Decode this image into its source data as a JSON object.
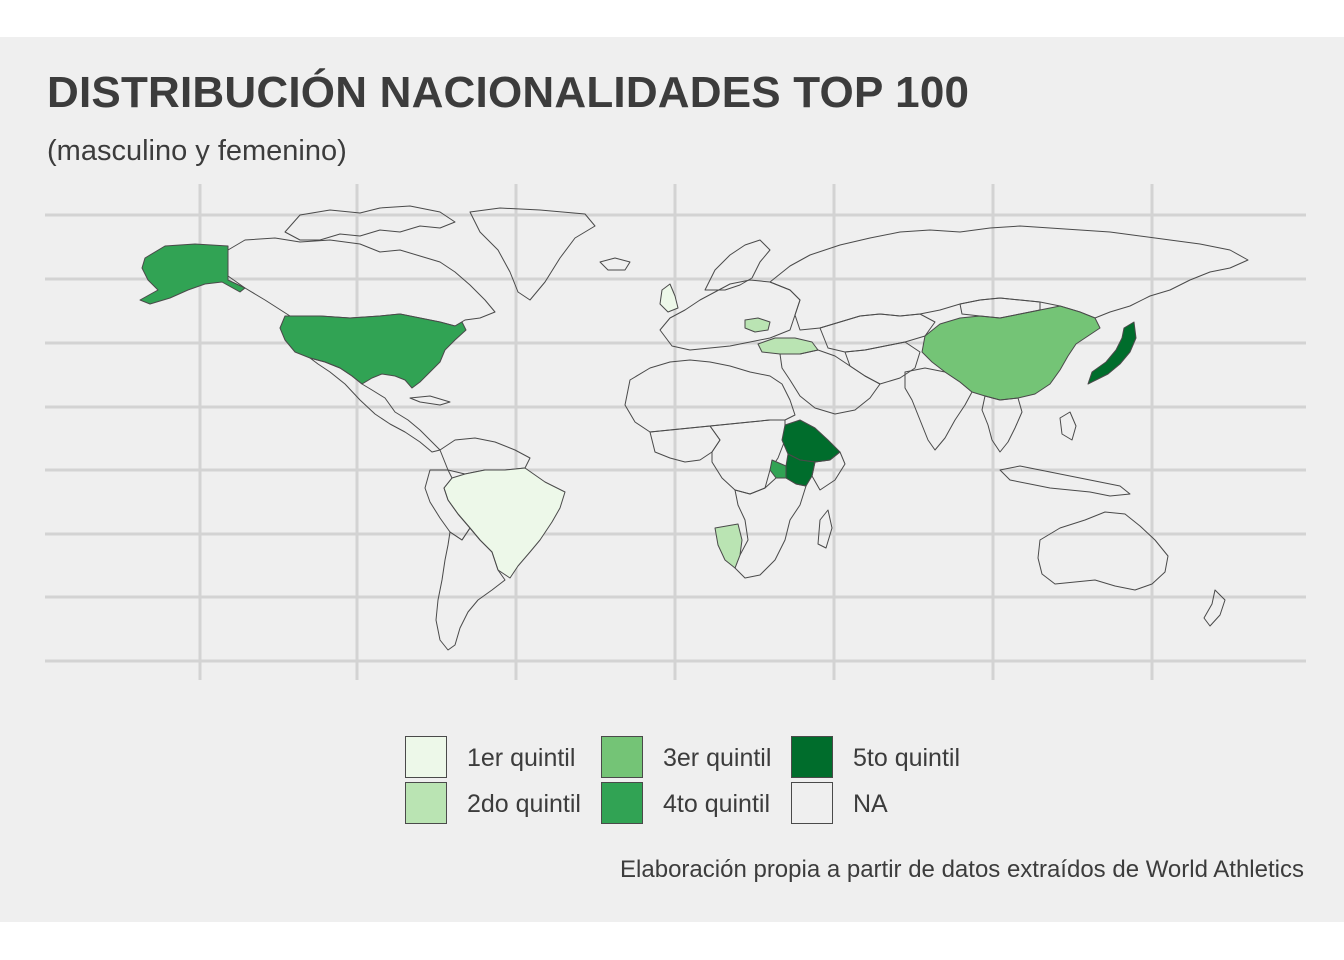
{
  "title": "DISTRIBUCIÓN NACIONALIDADES TOP 100",
  "subtitle": "(masculino y femenino)",
  "caption": "Elaboración propia a partir de datos extraídos de World Athletics",
  "legend": [
    {
      "label": "1er quintil",
      "color": "#edf8e9"
    },
    {
      "label": "2do quintil",
      "color": "#bae4b3"
    },
    {
      "label": "3er quintil",
      "color": "#74c476"
    },
    {
      "label": "4to quintil",
      "color": "#31a354"
    },
    {
      "label": "5to quintil",
      "color": "#006d2c"
    },
    {
      "label": "NA",
      "color": "#efefef"
    }
  ],
  "colors": {
    "background": "#efefef",
    "grid": "#d3d3d3",
    "border": "#4a4a4a"
  },
  "map_data": {
    "type": "choropleth",
    "highlighted_regions": [
      {
        "region": "United States",
        "quintile": "4to quintil"
      },
      {
        "region": "Brazil",
        "quintile": "1er quintil"
      },
      {
        "region": "China",
        "quintile": "3er quintil"
      },
      {
        "region": "Japan",
        "quintile": "5to quintil"
      },
      {
        "region": "Ethiopia",
        "quintile": "5to quintil"
      },
      {
        "region": "Kenya",
        "quintile": "5to quintil"
      },
      {
        "region": "Uganda",
        "quintile": "4to quintil"
      },
      {
        "region": "Namibia",
        "quintile": "2do quintil"
      },
      {
        "region": "Turkey",
        "quintile": "2do quintil"
      },
      {
        "region": "Romania",
        "quintile": "2do quintil"
      },
      {
        "region": "United Kingdom",
        "quintile": "1er quintil"
      }
    ]
  }
}
